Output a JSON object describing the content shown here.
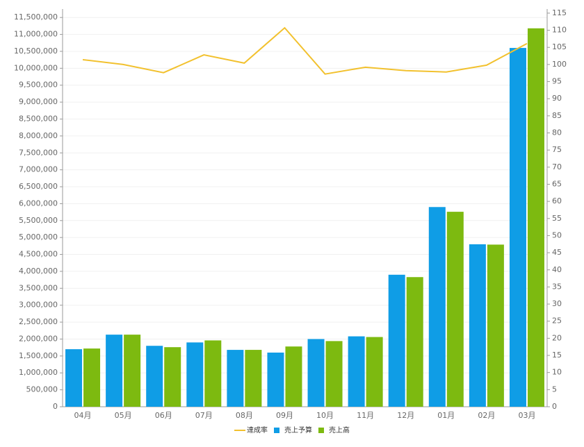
{
  "chart_data": {
    "type": "bar-line",
    "categories": [
      "04月",
      "05月",
      "06月",
      "07月",
      "08月",
      "09月",
      "10月",
      "11月",
      "12月",
      "01月",
      "02月",
      "03月"
    ],
    "series": [
      {
        "name": "達成率",
        "type": "line",
        "axis": "y2",
        "color": "#f2c12e",
        "values": [
          101.4,
          100.0,
          97.6,
          102.8,
          100.4,
          110.7,
          97.2,
          99.2,
          98.2,
          97.8,
          99.8,
          106.1
        ]
      },
      {
        "name": "売上予算",
        "type": "bar",
        "color": "#0f9de6",
        "values": [
          1700000,
          2130000,
          1800000,
          1900000,
          1680000,
          1600000,
          2000000,
          2080000,
          3900000,
          5900000,
          4800000,
          10600000
        ]
      },
      {
        "name": "売上高",
        "type": "bar",
        "color": "#7dba10",
        "values": [
          1720000,
          2130000,
          1760000,
          1960000,
          1680000,
          1780000,
          1940000,
          2060000,
          3830000,
          5760000,
          4790000,
          11180000
        ]
      }
    ],
    "ylim": [
      0,
      11750000
    ],
    "yticks": [
      0,
      {
        "value": 500000,
        "label": "500,000"
      },
      {
        "value": 1000000,
        "label": "1,000,000"
      },
      {
        "value": 1500000,
        "label": "1,500,000"
      },
      {
        "value": 2000000,
        "label": "2,000,000"
      },
      {
        "value": 2500000,
        "label": "2,500,000"
      },
      {
        "value": 3000000,
        "label": "3,000,000"
      },
      {
        "value": 3500000,
        "label": "3,500,000"
      },
      {
        "value": 4000000,
        "label": "4,000,000"
      },
      {
        "value": 4500000,
        "label": "4,500,000"
      },
      {
        "value": 5000000,
        "label": "5,000,000"
      },
      {
        "value": 5500000,
        "label": "5,500,000"
      },
      {
        "value": 6000000,
        "label": "6,000,000"
      },
      {
        "value": 6500000,
        "label": "6,500,000"
      },
      {
        "value": 7000000,
        "label": "7,000,000"
      },
      {
        "value": 7500000,
        "label": "7,500,000"
      },
      {
        "value": 8000000,
        "label": "8,000,000"
      },
      {
        "value": 8500000,
        "label": "8,500,000"
      },
      {
        "value": 9000000,
        "label": "9,000,000"
      },
      {
        "value": 9500000,
        "label": "9,500,000"
      },
      {
        "value": 10000000,
        "label": "10,000,000"
      },
      {
        "value": 10500000,
        "label": "10,500,000"
      },
      {
        "value": 11000000,
        "label": "11,000,000"
      },
      {
        "value": 11500000,
        "label": "11,500,000"
      }
    ],
    "y2lim": [
      0,
      116.2
    ],
    "y2ticks": [
      0,
      5,
      10,
      15,
      20,
      25,
      30,
      35,
      40,
      45,
      50,
      55,
      60,
      65,
      70,
      75,
      80,
      85,
      90,
      95,
      100,
      105,
      110,
      115
    ],
    "grid": true,
    "legend": "bottom"
  }
}
